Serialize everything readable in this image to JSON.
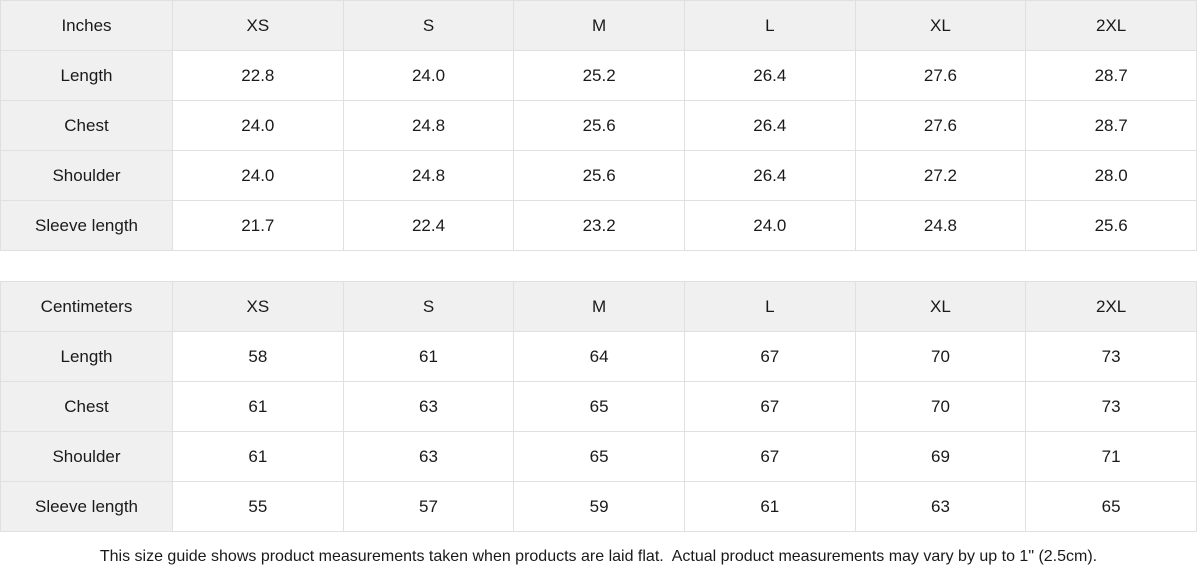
{
  "colors": {
    "header_bg": "#f0f0f0",
    "border": "#e0e0e0",
    "text": "#1a1a1a",
    "cell_bg": "#ffffff"
  },
  "tables": [
    {
      "unit_label": "Inches",
      "sizes": [
        "XS",
        "S",
        "M",
        "L",
        "XL",
        "2XL"
      ],
      "rows": [
        {
          "label": "Length",
          "values": [
            "22.8",
            "24.0",
            "25.2",
            "26.4",
            "27.6",
            "28.7"
          ]
        },
        {
          "label": "Chest",
          "values": [
            "24.0",
            "24.8",
            "25.6",
            "26.4",
            "27.6",
            "28.7"
          ]
        },
        {
          "label": "Shoulder",
          "values": [
            "24.0",
            "24.8",
            "25.6",
            "26.4",
            "27.2",
            "28.0"
          ]
        },
        {
          "label": "Sleeve length",
          "values": [
            "21.7",
            "22.4",
            "23.2",
            "24.0",
            "24.8",
            "25.6"
          ]
        }
      ]
    },
    {
      "unit_label": "Centimeters",
      "sizes": [
        "XS",
        "S",
        "M",
        "L",
        "XL",
        "2XL"
      ],
      "rows": [
        {
          "label": "Length",
          "values": [
            "58",
            "61",
            "64",
            "67",
            "70",
            "73"
          ]
        },
        {
          "label": "Chest",
          "values": [
            "61",
            "63",
            "65",
            "67",
            "70",
            "73"
          ]
        },
        {
          "label": "Shoulder",
          "values": [
            "61",
            "63",
            "65",
            "67",
            "69",
            "71"
          ]
        },
        {
          "label": "Sleeve length",
          "values": [
            "55",
            "57",
            "59",
            "61",
            "63",
            "65"
          ]
        }
      ]
    }
  ],
  "footer": {
    "note": "This size guide shows product measurements taken when products are laid flat.  Actual product measurements may vary by up to 1\" (2.5cm)."
  }
}
